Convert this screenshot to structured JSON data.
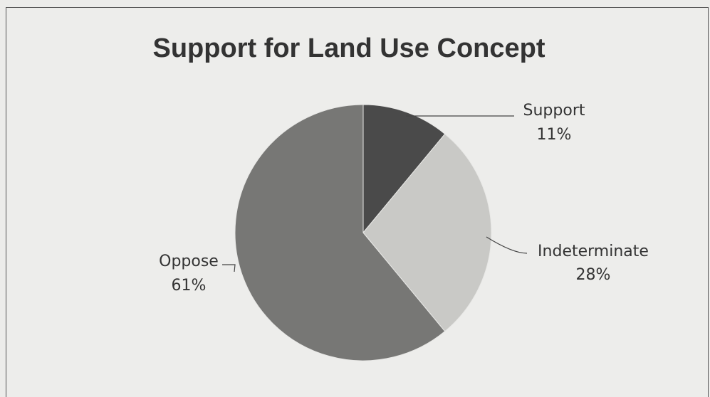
{
  "chart_data": {
    "type": "pie",
    "title": "Support for Land Use Concept",
    "slices": [
      {
        "name": "Support",
        "value": 11,
        "label": "11%",
        "color": "#4a4a4a"
      },
      {
        "name": "Indeterminate",
        "value": 28,
        "label": "28%",
        "color": "#c9c9c6"
      },
      {
        "name": "Oppose",
        "value": 61,
        "label": "61%",
        "color": "#777775"
      }
    ],
    "start_angle_deg": 0,
    "direction": "clockwise",
    "legend": "none"
  }
}
